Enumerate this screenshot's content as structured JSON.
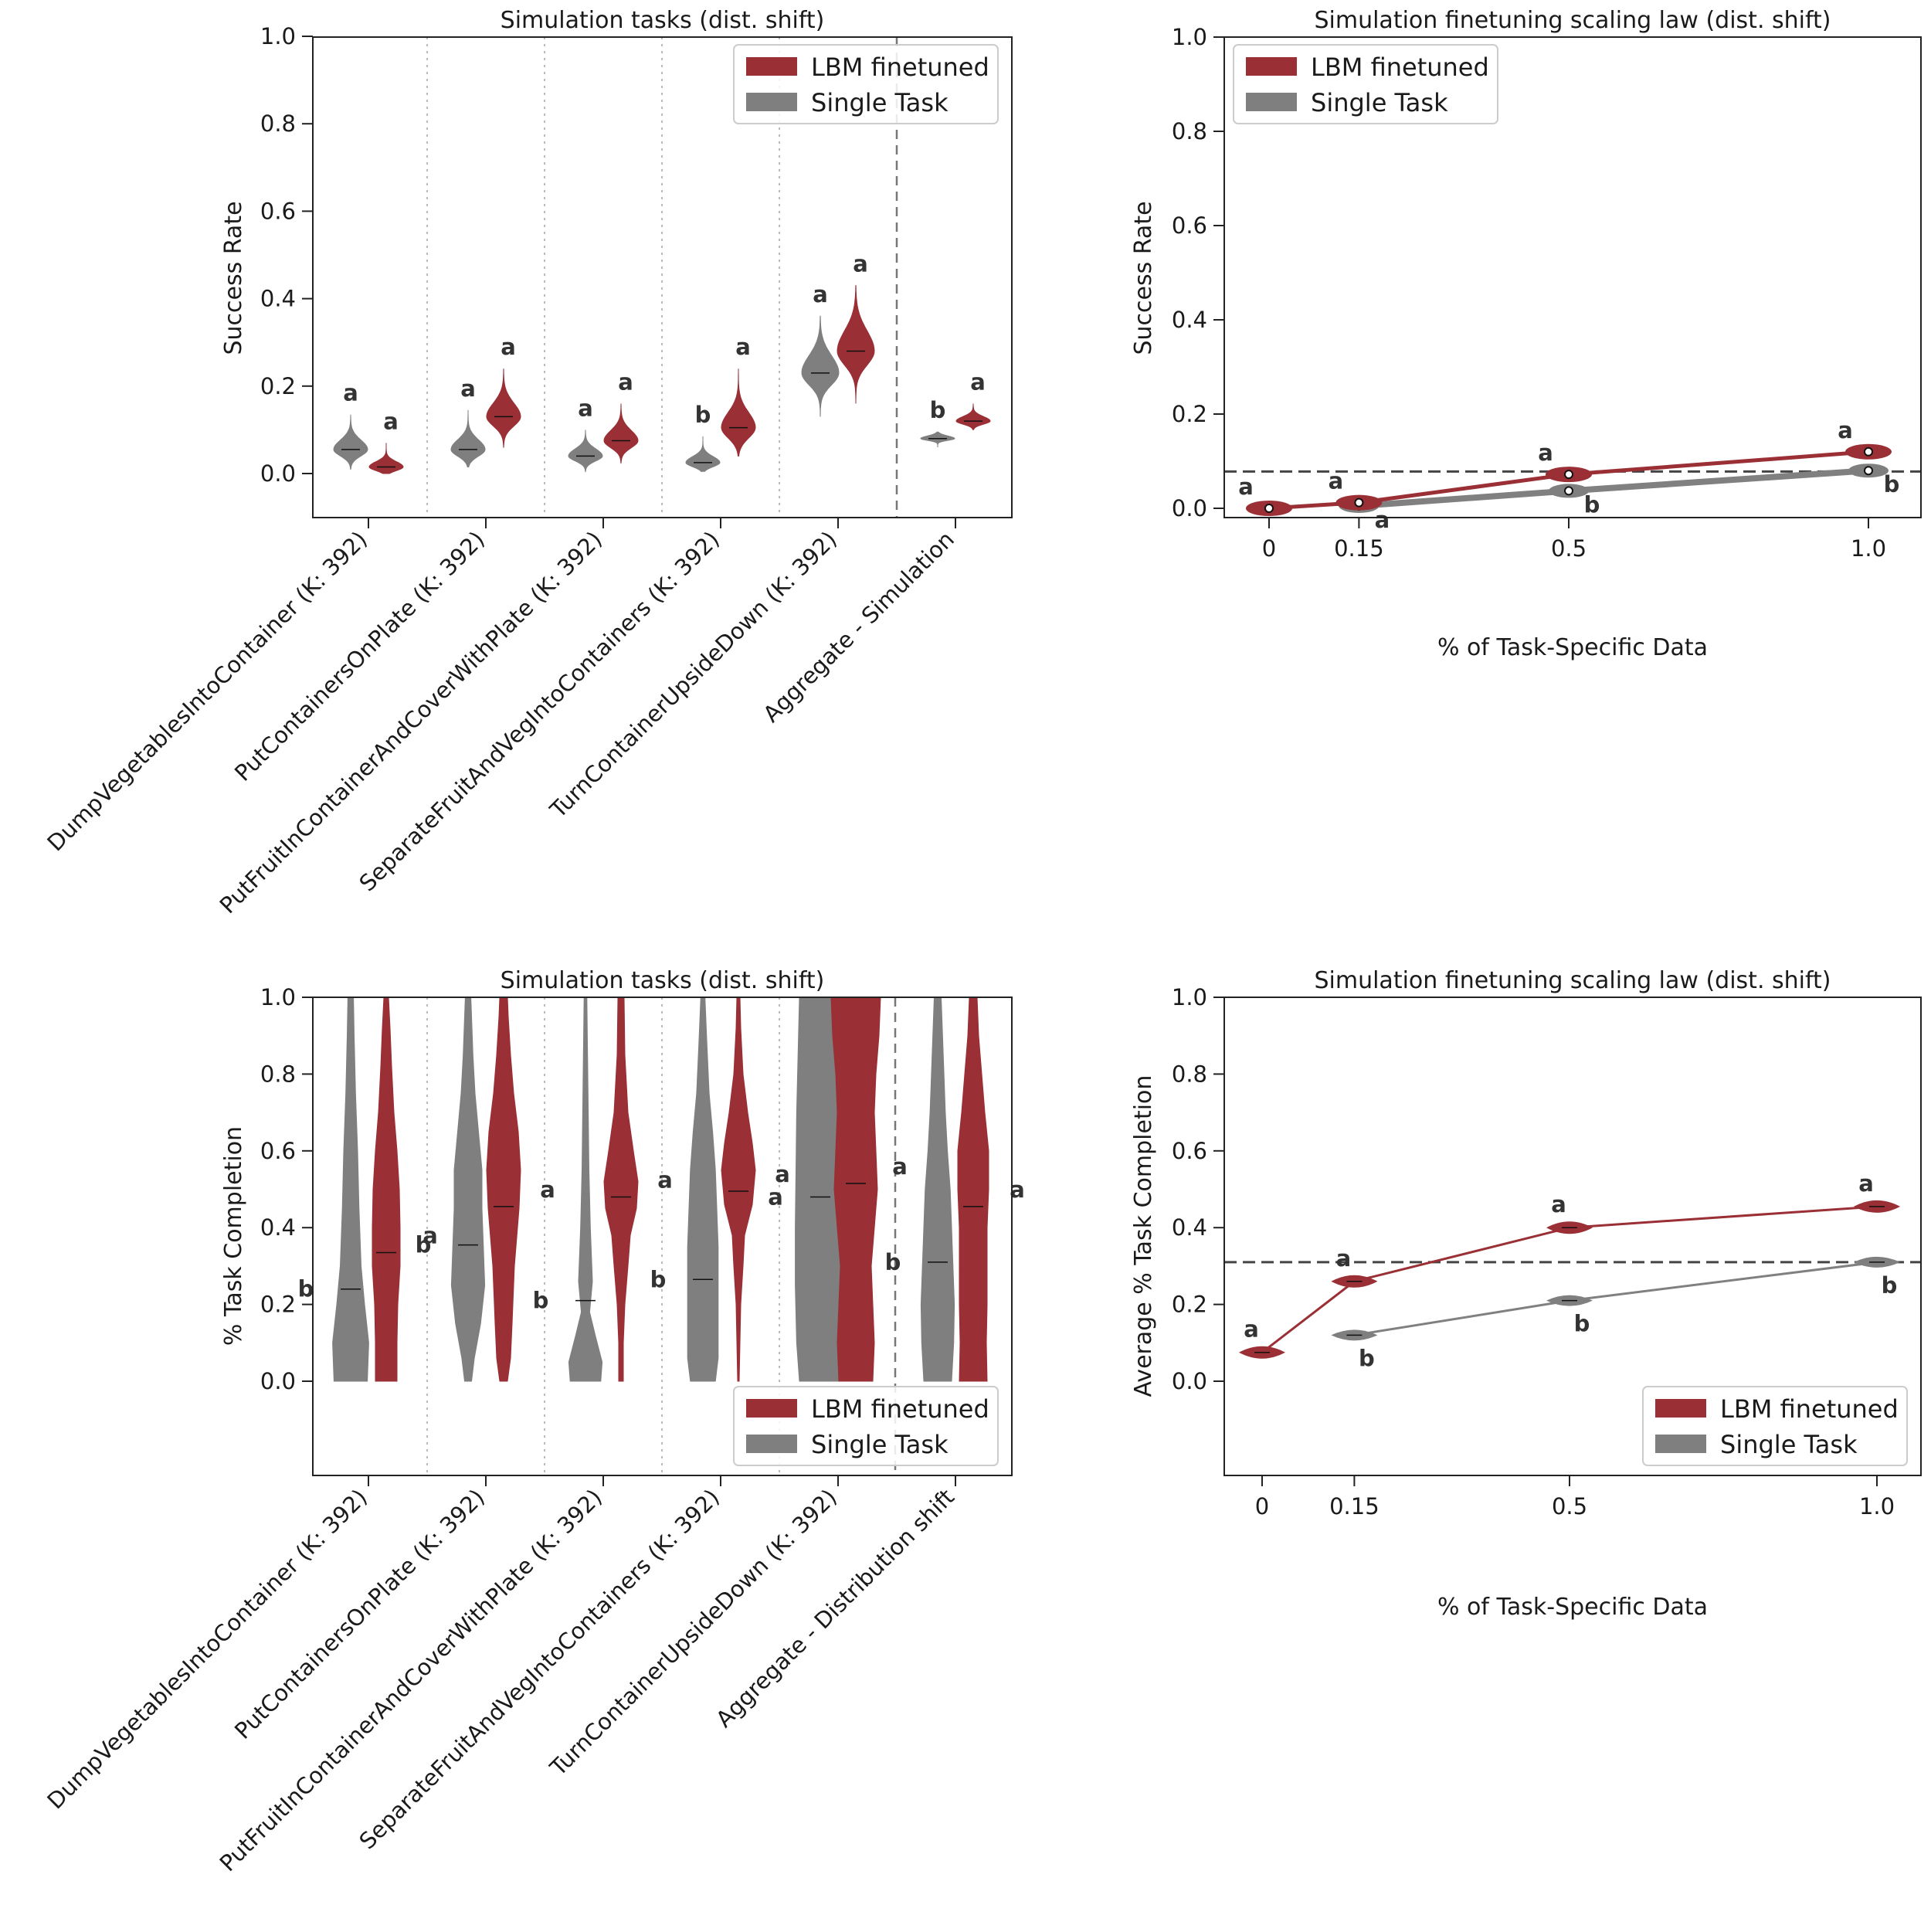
{
  "colors": {
    "lbm": "#9a2f35",
    "single": "#7f7f7f",
    "lbm_line": "#9a2f35",
    "single_line": "#808080"
  },
  "chart_data": [
    {
      "id": "p1",
      "type": "violin",
      "title": "Simulation tasks (dist. shift)",
      "ylabel": "Success Rate",
      "ylim": [
        -0.1,
        1.0
      ],
      "yticks": [
        "1.0",
        "0.8",
        "0.6",
        "0.4",
        "0.2",
        "0.0"
      ],
      "legend": {
        "position": "top-right",
        "entries": [
          "LBM finetuned",
          "Single Task"
        ]
      },
      "categories": [
        "DumpVegetablesIntoContainer (K: 392)",
        "PutContainersOnPlate (K: 392)",
        "PutFruitInContainerAndCoverWithPlate (K: 392)",
        "SeparateFruitAndVegIntoContainers (K: 392)",
        "TurnContainerUpsideDown (K: 392)",
        "Aggregate - Simulation"
      ],
      "series": [
        {
          "name": "Single Task",
          "medians": [
            0.055,
            0.055,
            0.04,
            0.025,
            0.23,
            0.08
          ],
          "lows": [
            0.01,
            0.015,
            0.005,
            0.005,
            0.13,
            0.06
          ],
          "highs": [
            0.135,
            0.145,
            0.1,
            0.085,
            0.36,
            0.095
          ],
          "letters": [
            "a",
            "a",
            "a",
            "b",
            "a",
            "b"
          ]
        },
        {
          "name": "LBM finetuned",
          "medians": [
            0.015,
            0.13,
            0.075,
            0.105,
            0.28,
            0.12
          ],
          "lows": [
            0.0,
            0.06,
            0.025,
            0.04,
            0.16,
            0.1
          ],
          "highs": [
            0.07,
            0.24,
            0.16,
            0.24,
            0.43,
            0.16
          ],
          "letters": [
            "a",
            "a",
            "a",
            "a",
            "a",
            "a"
          ]
        }
      ]
    },
    {
      "id": "p2",
      "type": "line",
      "title": "Simulation finetuning scaling law (dist. shift)",
      "ylabel": "Success Rate",
      "xlabel": "% of Task-Specific Data",
      "ylim": [
        -0.02,
        1.0
      ],
      "xticks": [
        "0",
        "0.15",
        "0.5",
        "1.0"
      ],
      "yticks": [
        "1.0",
        "0.8",
        "0.6",
        "0.4",
        "0.2",
        "0.0"
      ],
      "baseline": 0.078,
      "legend": {
        "position": "top-left",
        "entries": [
          "LBM finetuned",
          "Single Task"
        ]
      },
      "x": [
        0,
        0.15,
        0.5,
        1.0
      ],
      "series": [
        {
          "name": "LBM finetuned",
          "values": [
            0.0,
            0.012,
            0.072,
            0.12
          ],
          "letters": [
            "a",
            "a",
            "a",
            "a"
          ]
        },
        {
          "name": "Single Task",
          "values": [
            null,
            0.005,
            0.037,
            0.08
          ],
          "letters": [
            "",
            "a",
            "b",
            "b"
          ]
        }
      ]
    },
    {
      "id": "p3",
      "type": "violin",
      "title": "Simulation tasks (dist. shift)",
      "ylabel": "% Task Completion",
      "ylim": [
        -0.25,
        1.0
      ],
      "yticks": [
        "1.0",
        "0.8",
        "0.6",
        "0.4",
        "0.2",
        "0.0"
      ],
      "legend": {
        "position": "bottom-right",
        "entries": [
          "LBM finetuned",
          "Single Task"
        ]
      },
      "categories": [
        "DumpVegetablesIntoContainer (K: 392)",
        "PutContainersOnPlate (K: 392)",
        "PutFruitInContainerAndCoverWithPlate (K: 392)",
        "SeparateFruitAndVegIntoContainers (K: 392)",
        "TurnContainerUpsideDown (K: 392)",
        "Aggregate - Distribution shift"
      ],
      "series": [
        {
          "name": "Single Task",
          "medians": [
            0.24,
            0.355,
            0.21,
            0.265,
            0.48,
            0.31
          ],
          "letters": [
            "b",
            "b",
            "b",
            "b",
            "a",
            "b"
          ]
        },
        {
          "name": "LBM finetuned",
          "medians": [
            0.335,
            0.455,
            0.48,
            0.495,
            0.515,
            0.455
          ],
          "letters": [
            "a",
            "a",
            "a",
            "a",
            "a",
            "a"
          ]
        }
      ]
    },
    {
      "id": "p4",
      "type": "line",
      "title": "Simulation finetuning scaling law (dist. shift)",
      "ylabel": "Average % Task Completion",
      "xlabel": "% of Task-Specific Data",
      "ylim": [
        -0.25,
        1.0
      ],
      "xticks": [
        "0",
        "0.15",
        "0.5",
        "1.0"
      ],
      "yticks": [
        "1.0",
        "0.8",
        "0.6",
        "0.4",
        "0.2",
        "0.0"
      ],
      "baseline": 0.31,
      "legend": {
        "position": "bottom-right",
        "entries": [
          "LBM finetuned",
          "Single Task"
        ]
      },
      "x": [
        0,
        0.15,
        0.5,
        1.0
      ],
      "series": [
        {
          "name": "LBM finetuned",
          "values": [
            0.075,
            0.26,
            0.4,
            0.455
          ],
          "letters": [
            "a",
            "a",
            "a",
            "a"
          ]
        },
        {
          "name": "Single Task",
          "values": [
            null,
            0.12,
            0.21,
            0.31
          ],
          "letters": [
            "",
            "b",
            "b",
            "b"
          ]
        }
      ]
    }
  ]
}
